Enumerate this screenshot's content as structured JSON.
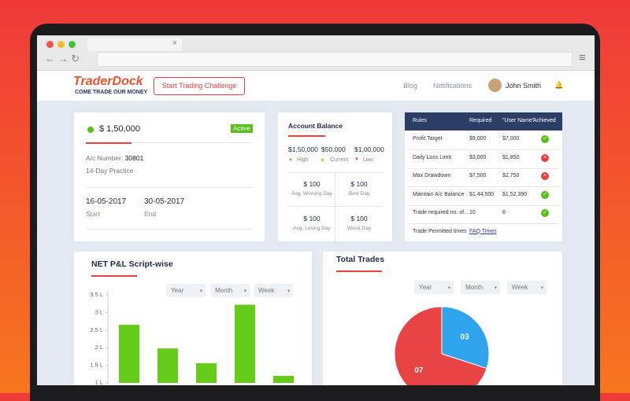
{
  "header": {
    "logo": "TraderDock",
    "tagline": "COME TRADE OUR MONEY",
    "cta": "Start Trading Challenge",
    "nav": [
      "Blog",
      "Notifications"
    ],
    "user": "John Smith"
  },
  "account": {
    "amount": "$ 1,50,000",
    "status": "Active",
    "ac_label": "A/c Number:",
    "ac_number": "30801",
    "plan": "14-Day Practice",
    "start_date": "16-05-2017",
    "start_label": "Start",
    "end_date": "30-05-2017",
    "end_label": "End"
  },
  "balance": {
    "title": "Account Balance",
    "levels": [
      {
        "amount": "$1,50,000",
        "label": "High"
      },
      {
        "amount": "$50,000",
        "label": "Current"
      },
      {
        "amount": "$1,00,000",
        "label": "Low"
      }
    ],
    "stats": [
      {
        "amount": "$ 100",
        "label": "Avg. Winning Day"
      },
      {
        "amount": "$ 100",
        "label": "Best Day"
      },
      {
        "amount": "$ 100",
        "label": "Avg. Losing Day"
      },
      {
        "amount": "$ 100",
        "label": "Worst Day"
      }
    ]
  },
  "rules_table": {
    "headers": [
      "Rules",
      "Required",
      "\"User Name\"",
      "Achieved"
    ],
    "rows": [
      [
        "Profit Target",
        "$9,000",
        "$7,000"
      ],
      [
        "Daily Loss Limit",
        "$3,000",
        "$1,850"
      ],
      [
        "Max Drawdown",
        "$7,500",
        "$2,750"
      ],
      [
        "Maintain A/c Balance",
        "$1,44,500",
        "$1,52,390"
      ],
      [
        "Trade required no. of...",
        "10",
        "6"
      ],
      [
        "Trade Permitted times",
        "FAQ Times"
      ]
    ],
    "achieved": [
      true,
      false,
      false,
      true,
      true
    ]
  },
  "chart_data": [
    {
      "type": "bar",
      "title": "NET P&L Script-wise",
      "filters": [
        "Year",
        "Month",
        "Week"
      ],
      "categories": [
        null,
        null,
        null,
        null,
        null
      ],
      "values": [
        2.65,
        1.98,
        1.56,
        3.22,
        1.2
      ],
      "color": "#66cc1a",
      "ylim": [
        1,
        3.5
      ],
      "yticks": [
        {
          "value": 1,
          "label": "1 L"
        },
        {
          "value": 1.5,
          "label": "1.5 L"
        },
        {
          "value": 2,
          "label": "2 L"
        },
        {
          "value": 2.5,
          "label": "2.5 L"
        },
        {
          "value": 3,
          "label": "3 L"
        },
        {
          "value": 3.5,
          "label": "3.5 L"
        }
      ]
    },
    {
      "type": "pie",
      "title": "Total Trades",
      "filters": [
        "Year",
        "Month",
        "Week"
      ],
      "values": [
        3,
        7
      ],
      "value_labels": [
        "03",
        "07"
      ],
      "colors": [
        "#2fa4ec",
        "#e84444"
      ]
    }
  ]
}
